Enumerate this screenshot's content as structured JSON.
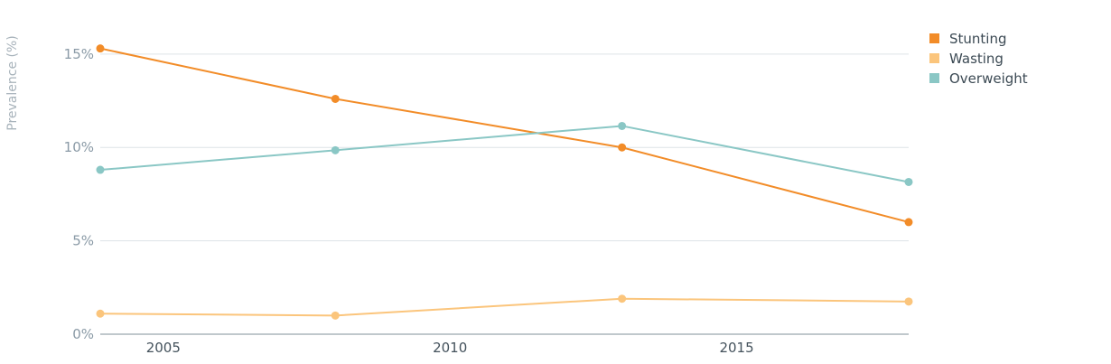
{
  "chart_data": {
    "type": "line",
    "title": "",
    "xlabel": "",
    "ylabel": "Prevalence (%)",
    "xlim": [
      2003.9,
      2018
    ],
    "ylim": [
      0,
      15.5
    ],
    "yticks": [
      0,
      5,
      10,
      15
    ],
    "ytick_labels": [
      "0%",
      "5%",
      "10%",
      "15%"
    ],
    "xticks": [
      2005,
      2010,
      2015
    ],
    "xtick_labels": [
      "2005",
      "2010",
      "2015"
    ],
    "grid": true,
    "legend_position": "top-right",
    "series": [
      {
        "name": "Stunting",
        "color": "#f28c28",
        "x": [
          2003.9,
          2008,
          2013,
          2018
        ],
        "values": [
          15.3,
          12.6,
          10.0,
          6.0
        ]
      },
      {
        "name": "Wasting",
        "color": "#fbc57c",
        "x": [
          2003.9,
          2008,
          2013,
          2018
        ],
        "values": [
          1.1,
          1.0,
          1.9,
          1.75
        ]
      },
      {
        "name": "Overweight",
        "color": "#8ac7c5",
        "x": [
          2003.9,
          2008,
          2013,
          2018
        ],
        "values": [
          8.8,
          9.85,
          11.15,
          8.15
        ]
      }
    ]
  }
}
